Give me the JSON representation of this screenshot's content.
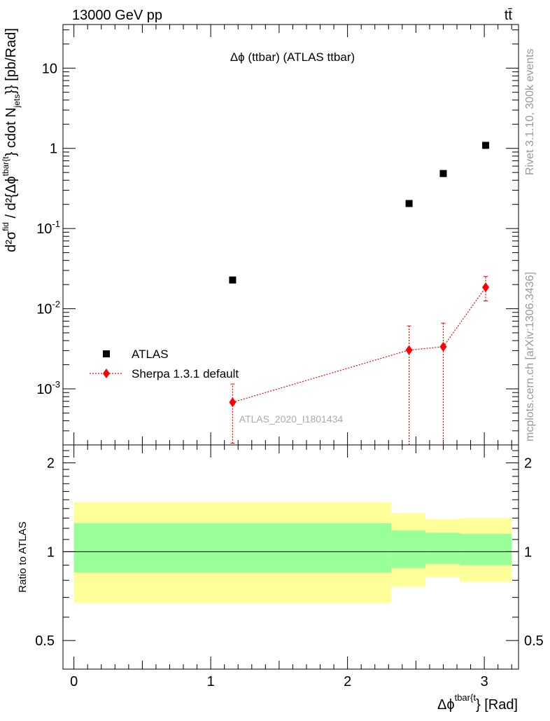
{
  "header": {
    "left": "13000 GeV pp",
    "right": "tt̄"
  },
  "side_labels": {
    "rivet": "Rivet 3.1.10,  300k events",
    "mcplots": "mcplots.cern.ch [arXiv:1306.3436]"
  },
  "watermark": "ATLAS_2020_I1801434",
  "colors": {
    "data": "#000000",
    "mc": "#ff0000",
    "band_inner": "#99ff99",
    "band_outer": "#ffff99"
  },
  "chart_data": [
    {
      "type": "scatter",
      "title": "Δϕ (ttbar) (ATLAS ttbar)",
      "ylabel": "d²σ^fid / d²{Δϕ^tbar{t}} cdot N_jets}} [pb/Rad]",
      "yscale": "log",
      "ylim": [
        0.0002,
        35
      ],
      "xlim": [
        -0.08,
        3.25
      ],
      "ytick_labels": [
        "10^-3",
        "10^-2",
        "10^-1",
        "1",
        "10"
      ],
      "legend_position": "lower-left",
      "series": [
        {
          "name": "ATLAS",
          "marker": "square",
          "points": [
            {
              "x": 1.16,
              "y": 0.0228
            },
            {
              "x": 2.45,
              "y": 0.205
            },
            {
              "x": 2.7,
              "y": 0.485
            },
            {
              "x": 3.01,
              "y": 1.09
            }
          ]
        },
        {
          "name": "Sherpa 1.3.1 default",
          "marker": "diamond",
          "line": "dotted",
          "points": [
            {
              "x": 1.16,
              "y": 0.00068,
              "ylow": 0.00021,
              "yhigh": 0.00115
            },
            {
              "x": 2.45,
              "y": 0.00305,
              "ylow": 1e-07,
              "yhigh": 0.0061
            },
            {
              "x": 2.7,
              "y": 0.00335,
              "ylow": 1e-07,
              "yhigh": 0.0066
            },
            {
              "x": 3.01,
              "y": 0.0185,
              "ylow": 0.0125,
              "yhigh": 0.0252
            }
          ]
        }
      ]
    },
    {
      "type": "area",
      "ylabel": "Ratio to ATLAS",
      "xlabel": "Δϕ^{tbar{t}} [Rad]",
      "xlim": [
        -0.08,
        3.25
      ],
      "ylim": [
        0.4,
        2.3
      ],
      "xtick_labels": [
        "0",
        "1",
        "2",
        "3"
      ],
      "ytick_labels": [
        "0.5",
        "1",
        "2"
      ],
      "reference_line": 1,
      "bins": [
        {
          "xlo": 0.0,
          "xhi": 2.32,
          "inner": [
            0.85,
            1.25
          ],
          "outer": [
            0.67,
            1.47
          ]
        },
        {
          "xlo": 2.32,
          "xhi": 2.57,
          "inner": [
            0.88,
            1.18
          ],
          "outer": [
            0.76,
            1.35
          ]
        },
        {
          "xlo": 2.57,
          "xhi": 2.82,
          "inner": [
            0.91,
            1.16
          ],
          "outer": [
            0.82,
            1.29
          ]
        },
        {
          "xlo": 2.82,
          "xhi": 3.2,
          "inner": [
            0.9,
            1.15
          ],
          "outer": [
            0.79,
            1.3
          ]
        }
      ]
    }
  ]
}
